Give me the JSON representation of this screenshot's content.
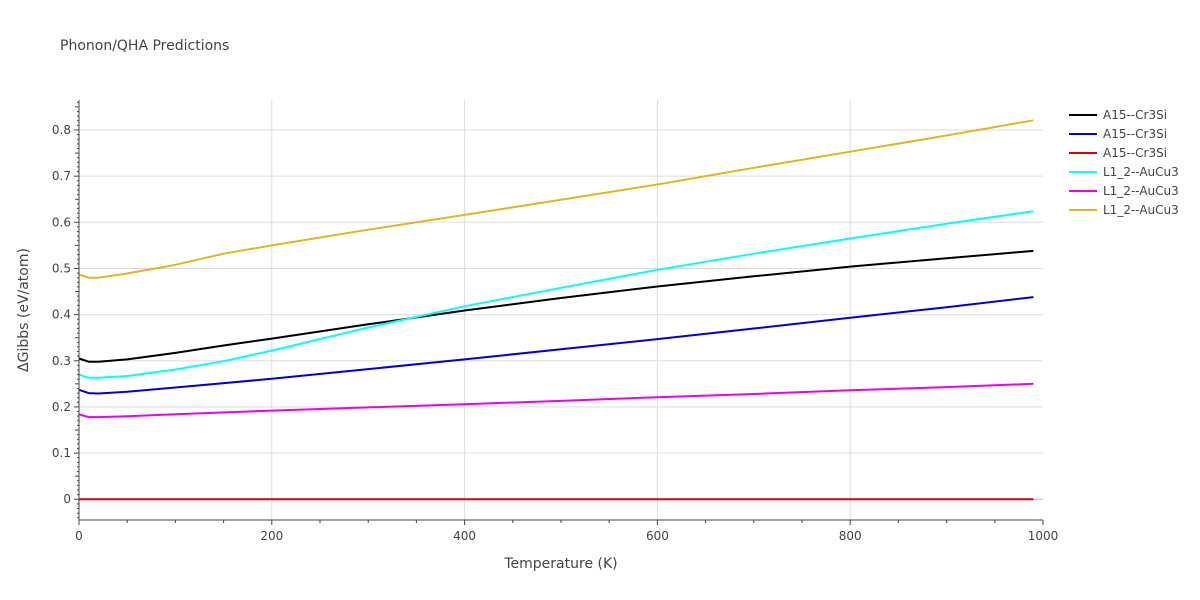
{
  "chart_data": {
    "type": "line",
    "title": "Phonon/QHA Predictions",
    "xlabel": "Temperature (K)",
    "ylabel": "ΔGibbs (eV/atom)",
    "xlim": [
      0,
      1000
    ],
    "ylim": [
      -0.045,
      0.865
    ],
    "xticks": [
      0,
      200,
      400,
      600,
      800,
      1000
    ],
    "xtick_labels": [
      "0",
      "200",
      "400",
      "600",
      "800",
      "1000"
    ],
    "yticks": [
      0,
      0.1,
      0.2,
      0.3,
      0.4,
      0.5,
      0.6,
      0.7,
      0.8
    ],
    "ytick_labels": [
      "0",
      "0.1",
      "0.2",
      "0.3",
      "0.4",
      "0.5",
      "0.6",
      "0.7",
      "0.8"
    ],
    "grid": true,
    "legend_position": "right",
    "series": [
      {
        "name": "A15--Cr3Si",
        "color": "#000000",
        "x": [
          0,
          10,
          20,
          50,
          100,
          150,
          200,
          300,
          400,
          500,
          600,
          700,
          800,
          900,
          990
        ],
        "y": [
          0.305,
          0.298,
          0.298,
          0.303,
          0.317,
          0.333,
          0.348,
          0.379,
          0.409,
          0.436,
          0.461,
          0.483,
          0.504,
          0.522,
          0.538
        ]
      },
      {
        "name": "A15--Cr3Si",
        "color": "#0000dd",
        "x": [
          0,
          10,
          20,
          50,
          100,
          200,
          300,
          400,
          500,
          600,
          700,
          800,
          900,
          990
        ],
        "y": [
          0.237,
          0.23,
          0.229,
          0.233,
          0.242,
          0.261,
          0.282,
          0.303,
          0.325,
          0.347,
          0.37,
          0.393,
          0.416,
          0.438
        ]
      },
      {
        "name": "A15--Cr3Si",
        "color": "#dd0000",
        "x": [
          0,
          990
        ],
        "y": [
          0,
          0
        ]
      },
      {
        "name": "L1_2--AuCu3",
        "color": "#00ffff",
        "x": [
          0,
          10,
          20,
          50,
          100,
          150,
          200,
          300,
          400,
          500,
          600,
          700,
          800,
          900,
          990
        ],
        "y": [
          0.27,
          0.263,
          0.263,
          0.267,
          0.281,
          0.299,
          0.322,
          0.372,
          0.418,
          0.458,
          0.497,
          0.532,
          0.565,
          0.597,
          0.624
        ]
      },
      {
        "name": "L1_2--AuCu3",
        "color": "#ee00ee",
        "x": [
          0,
          10,
          20,
          50,
          100,
          200,
          300,
          400,
          500,
          600,
          700,
          800,
          900,
          990
        ],
        "y": [
          0.184,
          0.178,
          0.178,
          0.18,
          0.184,
          0.192,
          0.199,
          0.206,
          0.213,
          0.221,
          0.228,
          0.236,
          0.243,
          0.25
        ]
      },
      {
        "name": "L1_2--AuCu3",
        "color": "#e6b325",
        "x": [
          0,
          10,
          20,
          50,
          100,
          150,
          200,
          300,
          400,
          500,
          600,
          700,
          800,
          900,
          990
        ],
        "y": [
          0.487,
          0.48,
          0.48,
          0.489,
          0.508,
          0.532,
          0.55,
          0.584,
          0.616,
          0.649,
          0.682,
          0.718,
          0.753,
          0.788,
          0.821
        ]
      }
    ]
  }
}
